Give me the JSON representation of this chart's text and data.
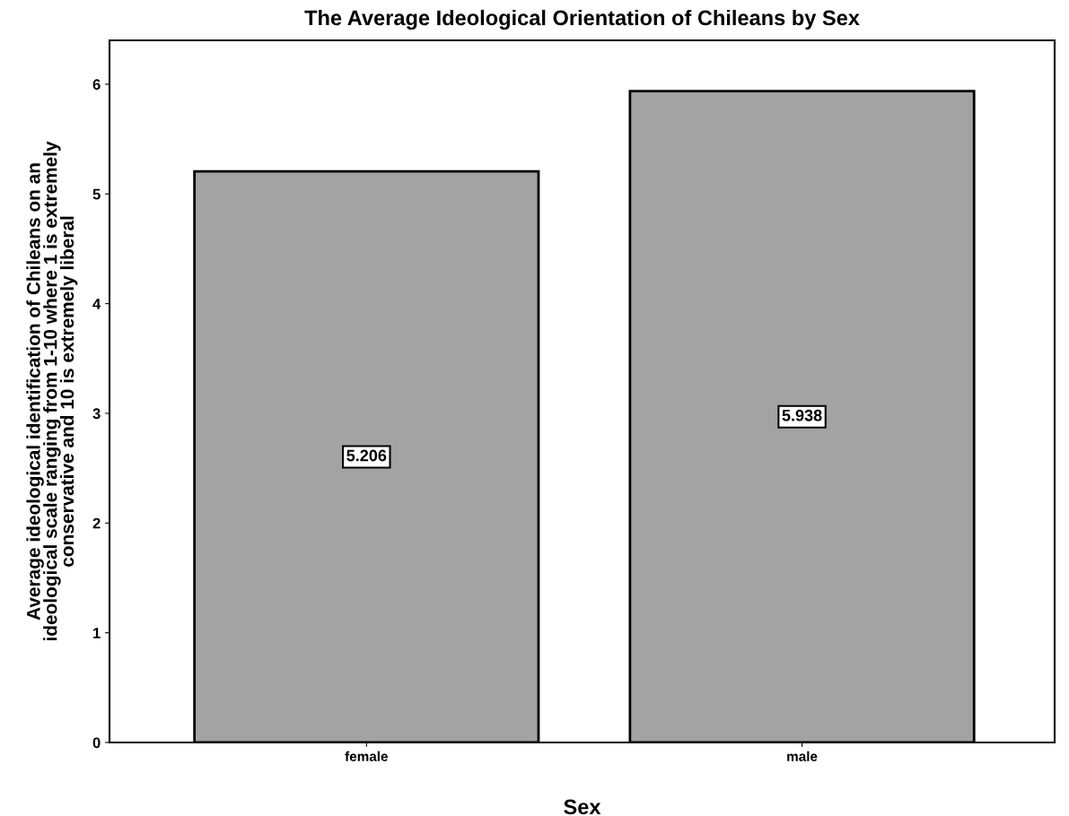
{
  "chart_data": {
    "type": "bar",
    "title": "The Average Ideological Orientation of Chileans by Sex",
    "xlabel": "Sex",
    "ylabel": "Average ideological identification of Chileans on an\nideological scale ranging from 1-10 where 1 is extremely\nconservative and 10 is extremely liberal",
    "categories": [
      "female",
      "male"
    ],
    "values": [
      5.206,
      5.938
    ],
    "color": "#a3a3a3",
    "ylim": [
      0,
      6.4
    ],
    "yticks": [
      0,
      1,
      2,
      3,
      4,
      5,
      6
    ],
    "data_labels": true,
    "grid": false,
    "legend": false
  }
}
